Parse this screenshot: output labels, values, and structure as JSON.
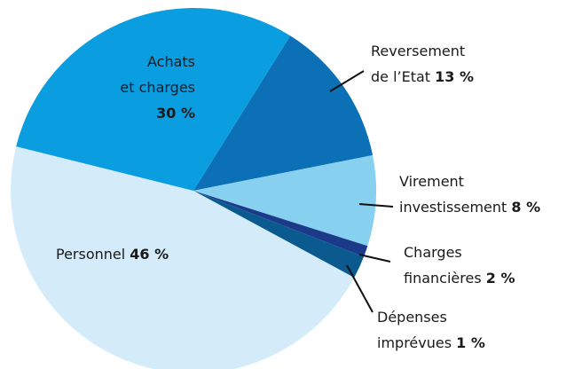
{
  "chart_data": {
    "type": "pie",
    "categories": [
      "Reversement\nde l’Etat",
      "Virement\ninvestissement",
      "Dépenses\nimprévues",
      "Charges\nfinancières",
      "Personnel",
      "Achats\net charges"
    ],
    "values": [
      13,
      8,
      1,
      2,
      46,
      30
    ],
    "value_labels": [
      "13 %",
      "8 %",
      "1 %",
      "2 %",
      "46 %",
      "30 %"
    ],
    "colors": [
      "#0b70b5",
      "#88d0f0",
      "#1b3a8a",
      "#0a5a8f",
      "#d4ecfa",
      "#0a9de0"
    ]
  }
}
